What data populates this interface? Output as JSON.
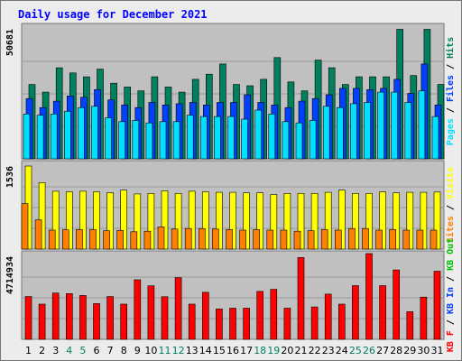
{
  "chart_data": [
    {
      "type": "bar",
      "title": "Daily usage for December 2021",
      "panel": "top",
      "max_label": "50681",
      "max_value": 50681,
      "categories": [
        "1",
        "2",
        "3",
        "4",
        "5",
        "6",
        "7",
        "8",
        "9",
        "10",
        "11",
        "12",
        "13",
        "14",
        "15",
        "16",
        "17",
        "18",
        "19",
        "20",
        "21",
        "22",
        "23",
        "24",
        "25",
        "26",
        "27",
        "28",
        "29",
        "30",
        "31"
      ],
      "series": [
        {
          "name": "Hits",
          "color": "#00805c",
          "values": [
            29000,
            26000,
            35500,
            33500,
            32000,
            35000,
            29500,
            28000,
            26500,
            32000,
            28000,
            26000,
            31000,
            33000,
            37000,
            29000,
            28500,
            31000,
            39500,
            30000,
            26500,
            38500,
            35500,
            29000,
            32000,
            32000,
            32000,
            50500,
            32500,
            50500,
            29000
          ]
        },
        {
          "name": "Files",
          "color": "#0040ff",
          "values": [
            23500,
            20000,
            22500,
            24500,
            24000,
            27000,
            23000,
            21000,
            20000,
            22000,
            21000,
            21500,
            22000,
            21000,
            22000,
            22000,
            25000,
            22000,
            21000,
            20000,
            22500,
            23500,
            25000,
            27500,
            27500,
            27000,
            27500,
            31000,
            25500,
            37000,
            21000
          ]
        },
        {
          "name": "Pages",
          "color": "#00e0ff",
          "values": [
            17500,
            17000,
            17500,
            18500,
            20000,
            20500,
            16000,
            14500,
            15000,
            14000,
            14500,
            14500,
            17000,
            16500,
            16500,
            16500,
            15500,
            19000,
            17500,
            14500,
            14000,
            15000,
            20500,
            20000,
            21500,
            22000,
            26000,
            26000,
            22000,
            26500,
            16500
          ]
        }
      ],
      "legend": [
        "Pages",
        "/",
        "Files",
        "/",
        "Hits"
      ]
    },
    {
      "type": "bar",
      "panel": "middle",
      "max_label": "1536",
      "max_value": 1536,
      "categories": [
        "1",
        "2",
        "3",
        "4",
        "5",
        "6",
        "7",
        "8",
        "9",
        "10",
        "11",
        "12",
        "13",
        "14",
        "15",
        "16",
        "17",
        "18",
        "19",
        "20",
        "21",
        "22",
        "23",
        "24",
        "25",
        "26",
        "27",
        "28",
        "29",
        "30",
        "31"
      ],
      "series": [
        {
          "name": "Visits",
          "color": "#ffff00",
          "values": [
            1536,
            1230,
            1070,
            1060,
            1070,
            1060,
            1045,
            1090,
            1020,
            1030,
            1080,
            1030,
            1070,
            1060,
            1050,
            1050,
            1040,
            1040,
            1010,
            1030,
            1030,
            1030,
            1050,
            1090,
            1030,
            1030,
            1060,
            1040,
            1050,
            1050,
            1055
          ]
        },
        {
          "name": "Sites",
          "color": "#ff8000",
          "values": [
            840,
            540,
            350,
            355,
            360,
            360,
            340,
            345,
            320,
            330,
            410,
            370,
            380,
            380,
            370,
            360,
            350,
            360,
            350,
            350,
            330,
            340,
            360,
            350,
            380,
            380,
            350,
            360,
            350,
            350,
            350
          ]
        }
      ],
      "legend": [
        "Sites",
        "/",
        "Visits"
      ]
    },
    {
      "type": "bar",
      "panel": "bottom",
      "max_label": "4714934",
      "max_value": 4714934,
      "categories": [
        "1",
        "2",
        "3",
        "4",
        "5",
        "6",
        "7",
        "8",
        "9",
        "10",
        "11",
        "12",
        "13",
        "14",
        "15",
        "16",
        "17",
        "18",
        "19",
        "20",
        "21",
        "22",
        "23",
        "24",
        "25",
        "26",
        "27",
        "28",
        "29",
        "30",
        "31"
      ],
      "series": [
        {
          "name": "KB F",
          "color": "#ff0000",
          "values": [
            2430000,
            2000000,
            2630000,
            2600000,
            2490000,
            2030000,
            2430000,
            2000000,
            3380000,
            3040000,
            2420000,
            3500000,
            2000000,
            2670000,
            1720000,
            1770000,
            1770000,
            2720000,
            2840000,
            1770000,
            4650000,
            1840000,
            2570000,
            2000000,
            3050000,
            4870000,
            3050000,
            3940000,
            1570000,
            2400000,
            3870000
          ]
        },
        {
          "name": "KB Out",
          "color": "#00c000",
          "values": [
            0,
            0,
            0,
            0,
            0,
            0,
            0,
            0,
            0,
            0,
            0,
            0,
            0,
            0,
            0,
            0,
            0,
            0,
            0,
            0,
            0,
            0,
            0,
            0,
            0,
            0,
            0,
            0,
            0,
            0,
            0
          ]
        },
        {
          "name": "KB In",
          "color": "#0040ff",
          "values": [
            0,
            0,
            0,
            0,
            0,
            0,
            0,
            0,
            0,
            0,
            0,
            0,
            0,
            0,
            0,
            0,
            0,
            0,
            0,
            0,
            0,
            0,
            0,
            0,
            0,
            0,
            0,
            0,
            0,
            0,
            0
          ]
        }
      ],
      "legend": [
        "KB F",
        "/",
        "KB In",
        "/",
        "KB Out"
      ]
    }
  ],
  "day_labels": [
    {
      "text": "1",
      "weekend": false
    },
    {
      "text": "2",
      "weekend": false
    },
    {
      "text": "3",
      "weekend": false
    },
    {
      "text": "4",
      "weekend": true
    },
    {
      "text": "5",
      "weekend": true
    },
    {
      "text": "6",
      "weekend": false
    },
    {
      "text": "7",
      "weekend": false
    },
    {
      "text": "8",
      "weekend": false
    },
    {
      "text": "9",
      "weekend": false
    },
    {
      "text": "10",
      "weekend": false
    },
    {
      "text": "11",
      "weekend": true
    },
    {
      "text": "12",
      "weekend": true
    },
    {
      "text": "13",
      "weekend": false
    },
    {
      "text": "14",
      "weekend": false
    },
    {
      "text": "15",
      "weekend": false
    },
    {
      "text": "16",
      "weekend": false
    },
    {
      "text": "17",
      "weekend": false
    },
    {
      "text": "18",
      "weekend": true
    },
    {
      "text": "19",
      "weekend": true
    },
    {
      "text": "20",
      "weekend": false
    },
    {
      "text": "21",
      "weekend": false
    },
    {
      "text": "22",
      "weekend": false
    },
    {
      "text": "23",
      "weekend": false
    },
    {
      "text": "24",
      "weekend": false
    },
    {
      "text": "25",
      "weekend": true
    },
    {
      "text": "26",
      "weekend": true
    },
    {
      "text": "27",
      "weekend": false
    },
    {
      "text": "28",
      "weekend": false
    },
    {
      "text": "29",
      "weekend": false
    },
    {
      "text": "30",
      "weekend": false
    },
    {
      "text": "31",
      "weekend": false
    }
  ],
  "colors": {
    "title": "#0000ff",
    "plot_bg": "#c0c0c0",
    "panel_bg": "#ececec",
    "weekday_label": "#000000",
    "weekend_label": "#008060",
    "separator": "#000000"
  }
}
